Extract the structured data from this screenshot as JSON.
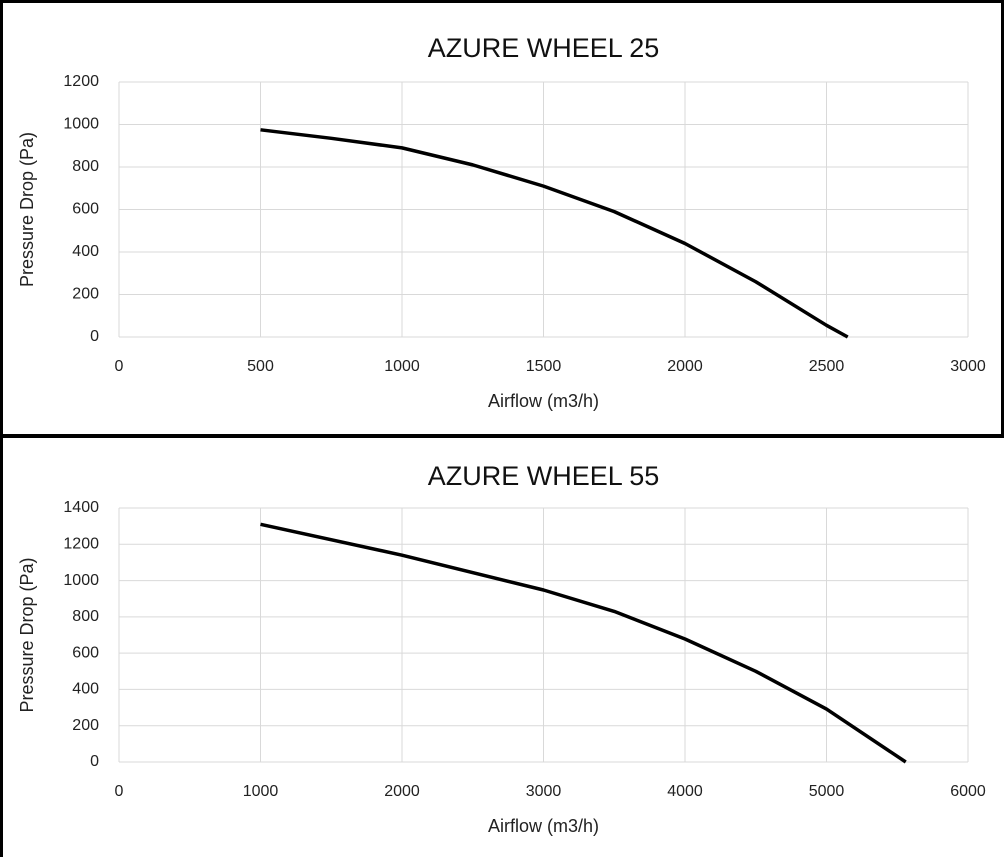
{
  "chart_data": [
    {
      "type": "line",
      "title": "AZURE WHEEL 25",
      "x_label": "Airflow (m3/h)",
      "y_label": "Pressure Drop (Pa)",
      "x": [
        500,
        750,
        1000,
        1250,
        1500,
        1750,
        2000,
        2250,
        2500,
        2575
      ],
      "series": [
        {
          "name": "AZURE WHEEL 25",
          "color": "#000000",
          "values": [
            975,
            935,
            890,
            810,
            710,
            590,
            440,
            260,
            55,
            0
          ]
        }
      ],
      "xlim": [
        0,
        3000
      ],
      "xticks": [
        0,
        500,
        1000,
        1500,
        2000,
        2500,
        3000
      ],
      "ylim": [
        0,
        1200
      ],
      "yticks": [
        0,
        200,
        400,
        600,
        800,
        1000,
        1200
      ],
      "grid": true
    },
    {
      "type": "line",
      "title": "AZURE WHEEL 55",
      "x_label": "Airflow (m3/h)",
      "y_label": "Pressure Drop (Pa)",
      "x": [
        1000,
        2000,
        3000,
        3500,
        4000,
        4500,
        5000,
        5560
      ],
      "series": [
        {
          "name": "AZURE WHEEL 55",
          "color": "#000000",
          "values": [
            1310,
            1140,
            948,
            830,
            678,
            500,
            292,
            0
          ]
        }
      ],
      "xlim": [
        0,
        6000
      ],
      "xticks": [
        0,
        1000,
        2000,
        3000,
        4000,
        5000,
        6000
      ],
      "ylim": [
        0,
        1400
      ],
      "yticks": [
        0,
        200,
        400,
        600,
        800,
        1000,
        1200,
        1400
      ],
      "grid": true
    }
  ]
}
